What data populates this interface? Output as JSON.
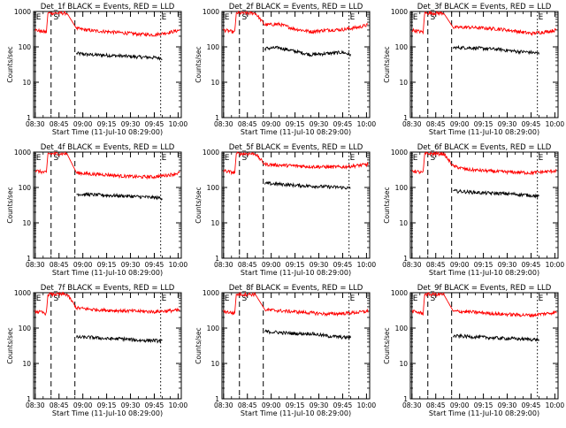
{
  "figure": {
    "xlabel": "Start Time (11-Jul-10 08:29:00)",
    "ylabel": "Counts/sec",
    "x_ticks": [
      "08:30",
      "08:45",
      "09:00",
      "09:15",
      "09:30",
      "09:45",
      "10:00"
    ],
    "y_ticks": [
      "1",
      "10",
      "100",
      "1000"
    ],
    "yscale": "log",
    "ylim": [
      1,
      1000
    ],
    "xlim_minutes_after_0829": [
      0,
      93
    ],
    "colors": {
      "events": "#000000",
      "lld": "#ff0000",
      "axes": "#000000"
    },
    "markers": [
      {
        "label": "E",
        "time": "08:30",
        "style": "solid"
      },
      {
        "label": "S",
        "time": "08:41",
        "style": "none"
      },
      {
        "label": "",
        "time": "08:40",
        "style": "dashed"
      },
      {
        "label": "",
        "time": "08:55",
        "style": "dashed"
      },
      {
        "label": "E",
        "time": "09:49",
        "style": "dotted"
      }
    ]
  },
  "chart_data": [
    {
      "type": "line",
      "title": "Det_1f BLACK = Events, RED = LLD",
      "series": [
        {
          "name": "Events",
          "color": "#000000",
          "x": [
            "08:56",
            "09:05",
            "09:15",
            "09:25",
            "09:35",
            "09:45",
            "09:50"
          ],
          "values": [
            65,
            60,
            58,
            55,
            52,
            50,
            48
          ]
        },
        {
          "name": "LLD",
          "color": "#ff0000",
          "x": [
            "08:30",
            "08:37",
            "08:38",
            "08:50",
            "08:56",
            "09:05",
            "09:15",
            "09:25",
            "09:35",
            "09:45",
            "09:55",
            "10:01"
          ],
          "values": [
            300,
            260,
            900,
            900,
            330,
            290,
            270,
            250,
            230,
            220,
            260,
            300
          ]
        }
      ]
    },
    {
      "type": "line",
      "title": "Det_2f BLACK = Events, RED = LLD",
      "series": [
        {
          "name": "Events",
          "color": "#000000",
          "x": [
            "08:56",
            "09:05",
            "09:15",
            "09:25",
            "09:35",
            "09:45",
            "09:50"
          ],
          "values": [
            90,
            95,
            75,
            60,
            65,
            70,
            60
          ]
        },
        {
          "name": "LLD",
          "color": "#ff0000",
          "x": [
            "08:30",
            "08:37",
            "08:38",
            "08:50",
            "08:56",
            "09:05",
            "09:15",
            "09:25",
            "09:35",
            "09:45",
            "09:55",
            "10:01"
          ],
          "values": [
            300,
            260,
            900,
            900,
            420,
            440,
            320,
            270,
            300,
            310,
            360,
            420
          ]
        }
      ]
    },
    {
      "type": "line",
      "title": "Det_3f BLACK = Events, RED = LLD",
      "series": [
        {
          "name": "Events",
          "color": "#000000",
          "x": [
            "08:56",
            "09:05",
            "09:15",
            "09:25",
            "09:35",
            "09:45",
            "09:50"
          ],
          "values": [
            95,
            95,
            90,
            85,
            75,
            70,
            65
          ]
        },
        {
          "name": "LLD",
          "color": "#ff0000",
          "x": [
            "08:30",
            "08:37",
            "08:38",
            "08:50",
            "08:56",
            "09:05",
            "09:15",
            "09:25",
            "09:35",
            "09:45",
            "09:55",
            "10:01"
          ],
          "values": [
            300,
            260,
            900,
            900,
            350,
            360,
            340,
            320,
            280,
            240,
            270,
            300
          ]
        }
      ]
    },
    {
      "type": "line",
      "title": "Det_4f BLACK = Events, RED = LLD",
      "series": [
        {
          "name": "Events",
          "color": "#000000",
          "x": [
            "08:56",
            "09:05",
            "09:15",
            "09:25",
            "09:35",
            "09:45",
            "09:50"
          ],
          "values": [
            65,
            63,
            60,
            58,
            55,
            52,
            50
          ]
        },
        {
          "name": "LLD",
          "color": "#ff0000",
          "x": [
            "08:30",
            "08:37",
            "08:38",
            "08:50",
            "08:56",
            "09:05",
            "09:15",
            "09:25",
            "09:35",
            "09:45",
            "09:55",
            "10:01"
          ],
          "values": [
            300,
            260,
            900,
            900,
            260,
            240,
            230,
            210,
            200,
            200,
            230,
            260
          ]
        }
      ]
    },
    {
      "type": "line",
      "title": "Det_5f BLACK = Events, RED = LLD",
      "series": [
        {
          "name": "Events",
          "color": "#000000",
          "x": [
            "08:56",
            "09:05",
            "09:15",
            "09:25",
            "09:35",
            "09:45",
            "09:50"
          ],
          "values": [
            130,
            125,
            115,
            110,
            105,
            100,
            95
          ]
        },
        {
          "name": "LLD",
          "color": "#ff0000",
          "x": [
            "08:30",
            "08:37",
            "08:38",
            "08:50",
            "08:56",
            "09:05",
            "09:15",
            "09:25",
            "09:35",
            "09:45",
            "09:55",
            "10:01"
          ],
          "values": [
            300,
            260,
            900,
            900,
            450,
            430,
            410,
            390,
            380,
            380,
            420,
            450
          ]
        }
      ]
    },
    {
      "type": "line",
      "title": "Det_6f BLACK = Events, RED = LLD",
      "series": [
        {
          "name": "Events",
          "color": "#000000",
          "x": [
            "08:56",
            "09:05",
            "09:15",
            "09:25",
            "09:35",
            "09:45",
            "09:50"
          ],
          "values": [
            80,
            75,
            70,
            68,
            65,
            60,
            55
          ]
        },
        {
          "name": "LLD",
          "color": "#ff0000",
          "x": [
            "08:30",
            "08:37",
            "08:38",
            "08:50",
            "08:56",
            "09:05",
            "09:15",
            "09:25",
            "09:35",
            "09:45",
            "09:55",
            "10:01"
          ],
          "values": [
            300,
            260,
            900,
            900,
            400,
            320,
            300,
            280,
            270,
            260,
            280,
            300
          ]
        }
      ]
    },
    {
      "type": "line",
      "title": "Det_7f BLACK = Events, RED = LLD",
      "series": [
        {
          "name": "Events",
          "color": "#000000",
          "x": [
            "08:56",
            "09:05",
            "09:15",
            "09:25",
            "09:35",
            "09:45",
            "09:50"
          ],
          "values": [
            55,
            55,
            50,
            50,
            45,
            45,
            42
          ]
        },
        {
          "name": "LLD",
          "color": "#ff0000",
          "x": [
            "08:30",
            "08:37",
            "08:38",
            "08:50",
            "08:56",
            "09:05",
            "09:15",
            "09:25",
            "09:35",
            "09:45",
            "09:55",
            "10:01"
          ],
          "values": [
            300,
            260,
            900,
            900,
            370,
            340,
            320,
            310,
            300,
            290,
            310,
            320
          ]
        }
      ]
    },
    {
      "type": "line",
      "title": "Det_8f BLACK = Events, RED = LLD",
      "series": [
        {
          "name": "Events",
          "color": "#000000",
          "x": [
            "08:56",
            "09:05",
            "09:15",
            "09:25",
            "09:35",
            "09:45",
            "09:50"
          ],
          "values": [
            80,
            75,
            70,
            70,
            60,
            55,
            55
          ]
        },
        {
          "name": "LLD",
          "color": "#ff0000",
          "x": [
            "08:30",
            "08:37",
            "08:38",
            "08:50",
            "08:56",
            "09:05",
            "09:15",
            "09:25",
            "09:35",
            "09:45",
            "09:55",
            "10:01"
          ],
          "values": [
            300,
            260,
            900,
            900,
            330,
            310,
            290,
            270,
            250,
            260,
            280,
            300
          ]
        }
      ]
    },
    {
      "type": "line",
      "title": "Det_9f BLACK = Events, RED = LLD",
      "series": [
        {
          "name": "Events",
          "color": "#000000",
          "x": [
            "08:56",
            "09:05",
            "09:15",
            "09:25",
            "09:35",
            "09:45",
            "09:50"
          ],
          "values": [
            60,
            58,
            55,
            52,
            50,
            48,
            47
          ]
        },
        {
          "name": "LLD",
          "color": "#ff0000",
          "x": [
            "08:30",
            "08:37",
            "08:38",
            "08:50",
            "08:56",
            "09:05",
            "09:15",
            "09:25",
            "09:35",
            "09:45",
            "09:55",
            "10:01"
          ],
          "values": [
            300,
            260,
            900,
            900,
            300,
            290,
            270,
            250,
            240,
            230,
            260,
            280
          ]
        }
      ]
    }
  ]
}
